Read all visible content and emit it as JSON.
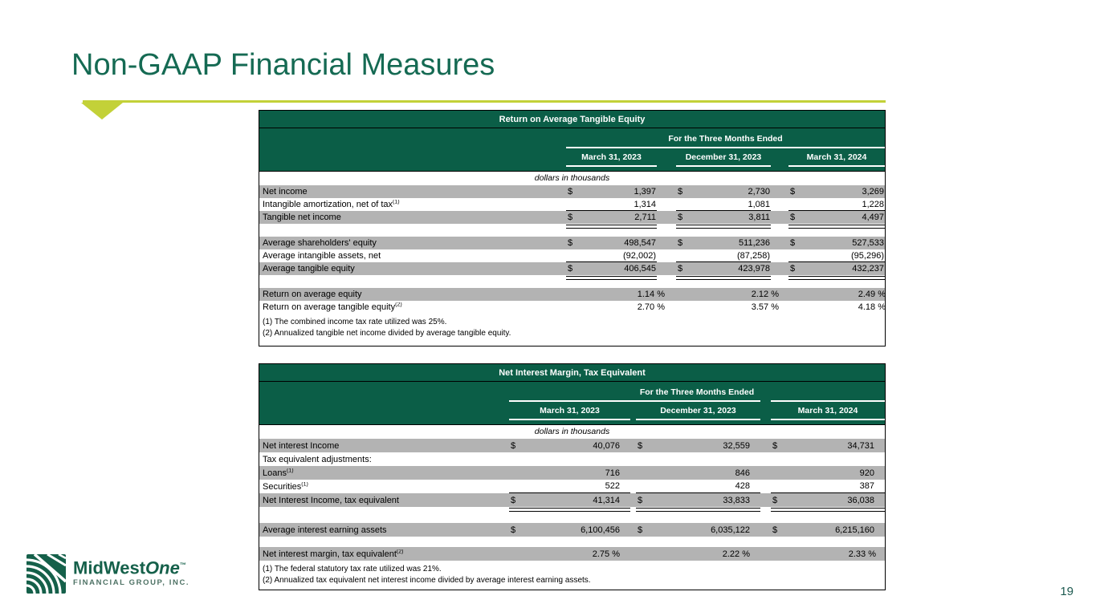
{
  "slide": {
    "title": "Non-GAAP Financial Measures",
    "page_number": "19"
  },
  "colors": {
    "header_green": "#0b5e47",
    "accent_chartreuse": "#c3d138",
    "row_gray": "#b3b3b3",
    "title_green": "#156a53"
  },
  "logo": {
    "name_bold": "MidWest",
    "name_italic": "One",
    "trademark": "™",
    "subtitle": "FINANCIAL GROUP, INC."
  },
  "table1": {
    "title": "Return on Average Tangible Equity",
    "period_header": "For the Three Months Ended",
    "columns": [
      "March 31, 2023",
      "December 31, 2023",
      "March 31, 2024"
    ],
    "units_note": "dollars in thousands",
    "currency": "$",
    "rows": [
      {
        "label": "Net income",
        "dollar": true,
        "shade": true,
        "values": [
          "1,397",
          "2,730",
          "3,269"
        ]
      },
      {
        "label": "Intangible amortization, net of tax",
        "sup": "(1)",
        "values": [
          "1,314",
          "1,081",
          "1,228"
        ],
        "underline": "single"
      },
      {
        "label": "Tangible net income",
        "indent": 1,
        "dollar": true,
        "shade": true,
        "values": [
          "2,711",
          "3,811",
          "4,497"
        ],
        "underline": "double"
      },
      {
        "spacer": true
      },
      {
        "label": "Average shareholders' equity",
        "dollar": true,
        "shade": true,
        "values": [
          "498,547",
          "511,236",
          "527,533"
        ]
      },
      {
        "label": "Average intangible assets, net",
        "values": [
          "(92,002)",
          "(87,258)",
          "(95,296)"
        ],
        "underline": "single"
      },
      {
        "label": "Average tangible equity",
        "indent": 2,
        "dollar": true,
        "shade": true,
        "values": [
          "406,545",
          "423,978",
          "432,237"
        ],
        "underline": "double"
      },
      {
        "spacer": true
      },
      {
        "label": "Return on average equity",
        "shade": true,
        "pct": true,
        "values": [
          "1.14 %",
          "2.12 %",
          "2.49 %"
        ]
      },
      {
        "label": "Return on average tangible equity",
        "sup": "(2)",
        "pct": true,
        "values": [
          "2.70 %",
          "3.57 %",
          "4.18 %"
        ]
      }
    ],
    "footnotes": [
      "(1) The combined income tax rate utilized was 25%.",
      "(2) Annualized tangible net income divided by average tangible equity."
    ]
  },
  "table2": {
    "title": "Net Interest Margin, Tax Equivalent",
    "period_header": "For the Three Months Ended",
    "columns": [
      "March 31, 2023",
      "December 31, 2023",
      "March 31, 2024"
    ],
    "units_note": "dollars in thousands",
    "currency": "$",
    "rows": [
      {
        "label": "Net interest Income",
        "dollar": true,
        "shade": true,
        "values": [
          "40,076",
          "32,559",
          "34,731"
        ]
      },
      {
        "label": "Tax equivalent adjustments:",
        "values": [
          "",
          "",
          ""
        ]
      },
      {
        "label": "Loans",
        "sup": "(1)",
        "indent": 1,
        "shade": true,
        "values": [
          "716",
          "846",
          "920"
        ]
      },
      {
        "label": "Securities",
        "sup": "(1)",
        "indent": 1,
        "values": [
          "522",
          "428",
          "387"
        ],
        "underline": "single"
      },
      {
        "label": "Net Interest Income, tax equivalent",
        "indent": 1,
        "dollar": true,
        "shade": true,
        "values": [
          "41,314",
          "33,833",
          "36,038"
        ],
        "underline": "double"
      },
      {
        "spacer": true
      },
      {
        "label": "Average interest earning assets",
        "dollar": true,
        "shade": true,
        "values": [
          "6,100,456",
          "6,035,122",
          "6,215,160"
        ]
      },
      {
        "spacer": true
      },
      {
        "label": "Net interest margin, tax equivalent",
        "sup": "(2)",
        "shade": true,
        "pct": true,
        "values": [
          "2.75 %",
          "2.22 %",
          "2.33 %"
        ]
      }
    ],
    "footnotes": [
      "(1) The federal statutory tax rate utilized was 21%.",
      "(2) Annualized tax equivalent net interest income divided by average interest earning assets."
    ]
  }
}
